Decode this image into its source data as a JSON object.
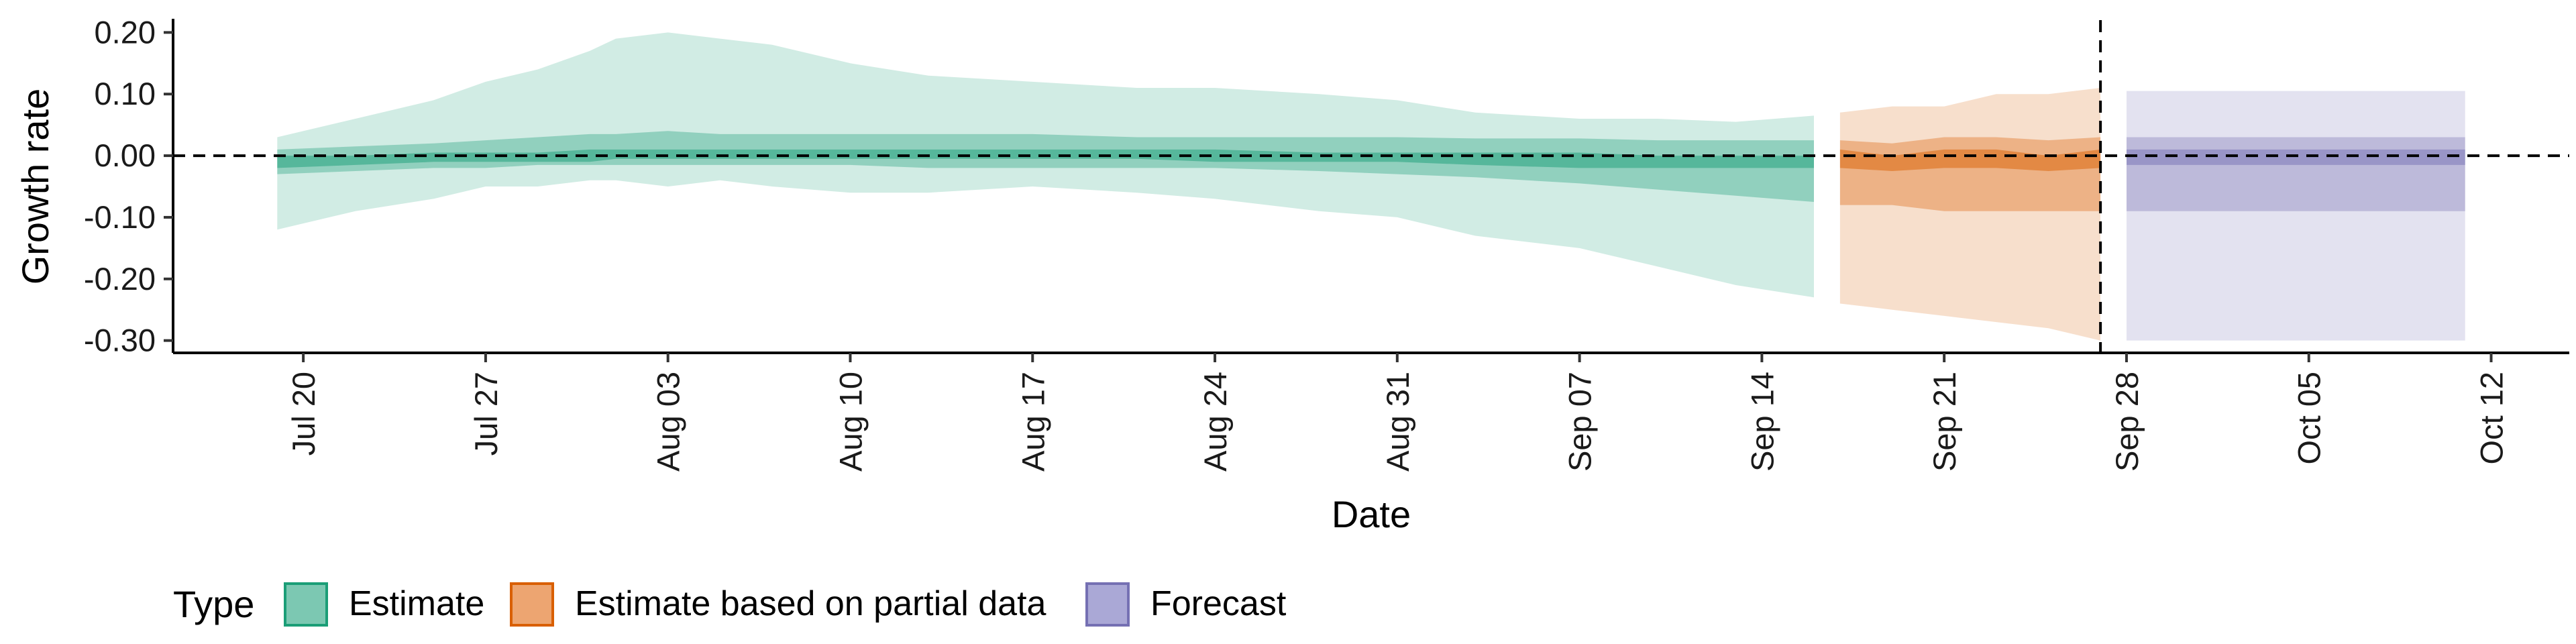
{
  "chart_data": {
    "type": "area",
    "xlabel": "Date",
    "ylabel": "Growth rate",
    "xlim": [
      "2020-07-15",
      "2020-10-15"
    ],
    "ylim": [
      -0.32,
      0.22
    ],
    "x_ticks": [
      "2020-07-20",
      "2020-07-27",
      "2020-08-03",
      "2020-08-10",
      "2020-08-17",
      "2020-08-24",
      "2020-08-31",
      "2020-09-07",
      "2020-09-14",
      "2020-09-21",
      "2020-09-28",
      "2020-10-05",
      "2020-10-12"
    ],
    "x_tick_labels": [
      "Jul 20",
      "Jul 27",
      "Aug 03",
      "Aug 10",
      "Aug 17",
      "Aug 24",
      "Aug 31",
      "Sep 07",
      "Sep 14",
      "Sep 21",
      "Sep 28",
      "Oct 05",
      "Oct 12"
    ],
    "y_ticks": [
      0.2,
      0.1,
      0.0,
      -0.1,
      -0.2,
      -0.3
    ],
    "y_tick_labels": [
      "0.20",
      "0.10",
      "0.00",
      "-0.10",
      "-0.20",
      "-0.30"
    ],
    "hline": 0,
    "vline": "2020-09-27",
    "grid": false,
    "legend": {
      "title": "Type",
      "position": "bottom-left",
      "items": [
        {
          "label": "Estimate",
          "fill": "#7cc8b2",
          "stroke": "#1b9e77"
        },
        {
          "label": "Estimate based on partial data",
          "fill": "#eda571",
          "stroke": "#d95f02"
        },
        {
          "label": "Forecast",
          "fill": "#aaa8d6",
          "stroke": "#7570b3"
        }
      ]
    },
    "series": [
      {
        "type_label": "Estimate",
        "color": "#1b9e77",
        "opacities": [
          0.2,
          0.35,
          0.5
        ],
        "x": [
          "2020-07-19",
          "2020-07-22",
          "2020-07-25",
          "2020-07-27",
          "2020-07-29",
          "2020-07-31",
          "2020-08-01",
          "2020-08-03",
          "2020-08-05",
          "2020-08-07",
          "2020-08-10",
          "2020-08-13",
          "2020-08-17",
          "2020-08-21",
          "2020-08-24",
          "2020-08-28",
          "2020-08-31",
          "2020-09-03",
          "2020-09-07",
          "2020-09-10",
          "2020-09-13",
          "2020-09-16"
        ],
        "outer_upper": [
          0.03,
          0.06,
          0.09,
          0.12,
          0.14,
          0.17,
          0.19,
          0.2,
          0.19,
          0.18,
          0.15,
          0.13,
          0.12,
          0.11,
          0.11,
          0.1,
          0.09,
          0.07,
          0.06,
          0.06,
          0.055,
          0.065
        ],
        "outer_lower": [
          -0.12,
          -0.09,
          -0.07,
          -0.05,
          -0.05,
          -0.04,
          -0.04,
          -0.05,
          -0.04,
          -0.05,
          -0.06,
          -0.06,
          -0.05,
          -0.06,
          -0.07,
          -0.09,
          -0.1,
          -0.13,
          -0.15,
          -0.18,
          -0.21,
          -0.23
        ],
        "mid_upper": [
          0.01,
          0.015,
          0.02,
          0.025,
          0.03,
          0.035,
          0.035,
          0.04,
          0.035,
          0.035,
          0.035,
          0.035,
          0.035,
          0.03,
          0.03,
          0.03,
          0.03,
          0.028,
          0.028,
          0.025,
          0.025,
          0.025
        ],
        "mid_lower": [
          -0.03,
          -0.025,
          -0.02,
          -0.02,
          -0.015,
          -0.015,
          -0.015,
          -0.015,
          -0.015,
          -0.015,
          -0.015,
          -0.02,
          -0.02,
          -0.02,
          -0.02,
          -0.025,
          -0.03,
          -0.035,
          -0.045,
          -0.055,
          -0.065,
          -0.075
        ],
        "inner_upper": [
          0.0,
          0.0,
          0.005,
          0.005,
          0.005,
          0.01,
          0.01,
          0.01,
          0.01,
          0.01,
          0.01,
          0.01,
          0.01,
          0.01,
          0.01,
          0.005,
          0.005,
          0.005,
          0.005,
          0.0,
          0.0,
          0.0
        ],
        "inner_lower": [
          -0.02,
          -0.015,
          -0.01,
          -0.01,
          -0.01,
          -0.01,
          -0.005,
          -0.005,
          -0.005,
          -0.005,
          -0.005,
          -0.005,
          -0.005,
          -0.005,
          -0.01,
          -0.01,
          -0.01,
          -0.015,
          -0.02,
          -0.02,
          -0.02,
          -0.02
        ]
      },
      {
        "type_label": "Estimate based on partial data",
        "color": "#d95f02",
        "opacities": [
          0.2,
          0.35,
          0.5
        ],
        "x": [
          "2020-09-17",
          "2020-09-19",
          "2020-09-21",
          "2020-09-23",
          "2020-09-25",
          "2020-09-27"
        ],
        "outer_upper": [
          0.07,
          0.08,
          0.08,
          0.1,
          0.1,
          0.11
        ],
        "outer_lower": [
          -0.24,
          -0.25,
          -0.26,
          -0.27,
          -0.28,
          -0.3
        ],
        "mid_upper": [
          0.025,
          0.02,
          0.03,
          0.03,
          0.025,
          0.03
        ],
        "mid_lower": [
          -0.08,
          -0.08,
          -0.09,
          -0.09,
          -0.09,
          -0.09
        ],
        "inner_upper": [
          0.01,
          0.0,
          0.01,
          0.01,
          0.0,
          0.01
        ],
        "inner_lower": [
          -0.02,
          -0.025,
          -0.02,
          -0.02,
          -0.025,
          -0.02
        ]
      },
      {
        "type_label": "Forecast",
        "color": "#7570b3",
        "opacities": [
          0.2,
          0.35,
          0.5
        ],
        "x": [
          "2020-09-28",
          "2020-10-11"
        ],
        "outer_upper": [
          0.105,
          0.105
        ],
        "outer_lower": [
          -0.3,
          -0.3
        ],
        "mid_upper": [
          0.03,
          0.03
        ],
        "mid_lower": [
          -0.09,
          -0.09
        ],
        "inner_upper": [
          0.01,
          0.01
        ],
        "inner_lower": [
          -0.015,
          -0.015
        ]
      }
    ]
  }
}
